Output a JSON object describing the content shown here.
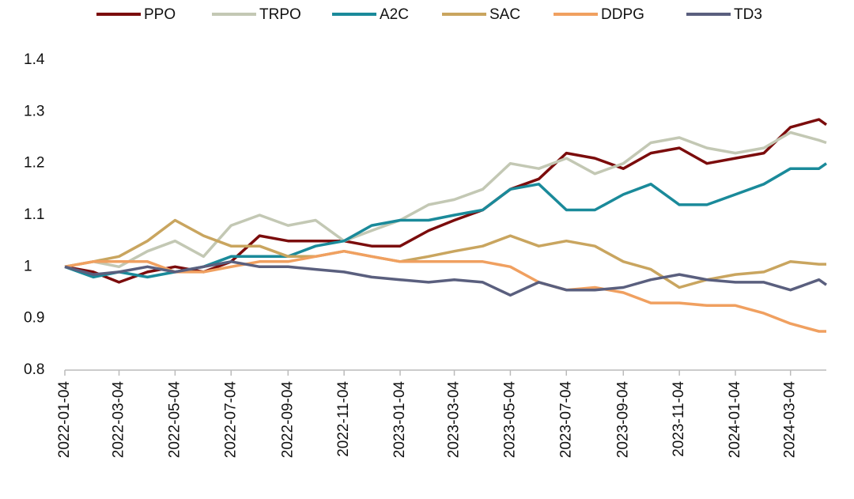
{
  "chart_data": {
    "type": "line",
    "x": [
      "2022-01-04",
      "2022-02-04",
      "2022-03-04",
      "2022-04-04",
      "2022-05-04",
      "2022-06-04",
      "2022-07-04",
      "2022-08-04",
      "2022-09-04",
      "2022-10-04",
      "2022-11-04",
      "2022-12-04",
      "2023-01-04",
      "2023-02-04",
      "2023-03-04",
      "2023-04-04",
      "2023-05-04",
      "2023-06-04",
      "2023-07-04",
      "2023-08-04",
      "2023-09-04",
      "2023-10-04",
      "2023-11-04",
      "2023-12-04",
      "2024-01-04",
      "2024-02-04",
      "2024-03-04",
      "2024-04-04",
      "2024-04-12"
    ],
    "series": [
      {
        "name": "PPO",
        "color": "#7b0c0c",
        "values": [
          1.0,
          0.99,
          0.97,
          0.99,
          1.0,
          0.99,
          1.01,
          1.06,
          1.05,
          1.05,
          1.05,
          1.04,
          1.04,
          1.07,
          1.09,
          1.11,
          1.15,
          1.17,
          1.22,
          1.21,
          1.19,
          1.22,
          1.23,
          1.2,
          1.21,
          1.22,
          1.27,
          1.285,
          1.275
        ]
      },
      {
        "name": "TRPO",
        "color": "#c3c8b4",
        "values": [
          1.0,
          1.01,
          1.0,
          1.03,
          1.05,
          1.02,
          1.08,
          1.1,
          1.08,
          1.09,
          1.05,
          1.07,
          1.09,
          1.12,
          1.13,
          1.15,
          1.2,
          1.19,
          1.21,
          1.18,
          1.2,
          1.24,
          1.25,
          1.23,
          1.22,
          1.23,
          1.26,
          1.245,
          1.24
        ]
      },
      {
        "name": "A2C",
        "color": "#1a8a9a",
        "values": [
          1.0,
          0.98,
          0.99,
          0.98,
          0.99,
          1.0,
          1.02,
          1.02,
          1.02,
          1.04,
          1.05,
          1.08,
          1.09,
          1.09,
          1.1,
          1.11,
          1.15,
          1.16,
          1.11,
          1.11,
          1.14,
          1.16,
          1.12,
          1.12,
          1.14,
          1.16,
          1.19,
          1.19,
          1.2
        ]
      },
      {
        "name": "SAC",
        "color": "#c9a55f",
        "values": [
          1.0,
          1.01,
          1.02,
          1.05,
          1.09,
          1.06,
          1.04,
          1.04,
          1.02,
          1.02,
          1.03,
          1.02,
          1.01,
          1.02,
          1.03,
          1.04,
          1.06,
          1.04,
          1.05,
          1.04,
          1.01,
          0.995,
          0.96,
          0.975,
          0.985,
          0.99,
          1.01,
          1.005,
          1.005
        ]
      },
      {
        "name": "DDPG",
        "color": "#f0a060",
        "values": [
          1.0,
          1.01,
          1.01,
          1.01,
          0.99,
          0.99,
          1.0,
          1.01,
          1.01,
          1.02,
          1.03,
          1.02,
          1.01,
          1.01,
          1.01,
          1.01,
          1.0,
          0.97,
          0.955,
          0.96,
          0.95,
          0.93,
          0.93,
          0.925,
          0.925,
          0.91,
          0.89,
          0.875,
          0.875
        ]
      },
      {
        "name": "TD3",
        "color": "#5a5f7e",
        "values": [
          1.0,
          0.985,
          0.99,
          1.0,
          0.99,
          1.0,
          1.01,
          1.0,
          1.0,
          0.995,
          0.99,
          0.98,
          0.975,
          0.97,
          0.975,
          0.97,
          0.945,
          0.97,
          0.955,
          0.955,
          0.96,
          0.975,
          0.985,
          0.975,
          0.97,
          0.97,
          0.955,
          0.975,
          0.965
        ]
      }
    ],
    "xlim": [
      "2022-01-04",
      "2024-04-12"
    ],
    "xticks": [
      "2022-01-04",
      "2022-03-04",
      "2022-05-04",
      "2022-07-04",
      "2022-09-04",
      "2022-11-04",
      "2023-01-04",
      "2023-03-04",
      "2023-05-04",
      "2023-07-04",
      "2023-09-04",
      "2023-11-04",
      "2024-01-04",
      "2024-03-04"
    ],
    "ylim": [
      0.8,
      1.4
    ],
    "yticks": [
      0.8,
      0.9,
      1,
      1.1,
      1.2,
      1.3,
      1.4
    ],
    "grid": false,
    "legend": "top"
  }
}
